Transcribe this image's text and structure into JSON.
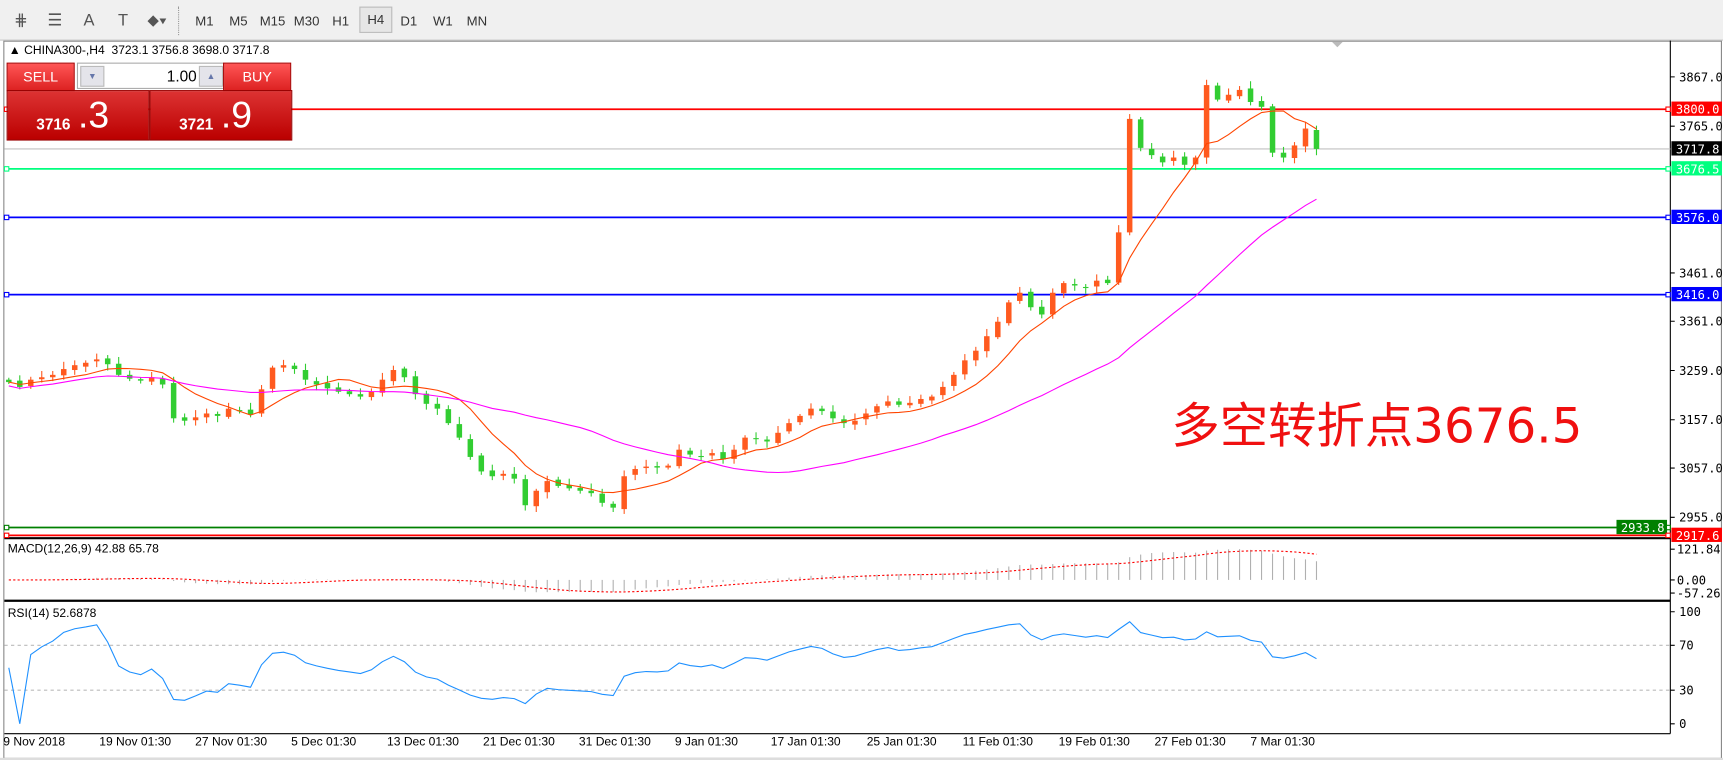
{
  "toolbar": {
    "tools": [
      {
        "name": "fibonacci-expansion-icon",
        "glyph": "⋕"
      },
      {
        "name": "fibonacci-fan-icon",
        "glyph": "☰"
      },
      {
        "name": "text-icon",
        "glyph": "A"
      },
      {
        "name": "text-label-icon",
        "glyph": "T"
      },
      {
        "name": "arrows-icon",
        "glyph": "⬥▾"
      }
    ],
    "timeframes": [
      "M1",
      "M5",
      "M15",
      "M30",
      "H1",
      "H4",
      "D1",
      "W1",
      "MN"
    ],
    "active_timeframe": "H4"
  },
  "header": {
    "symbol": "CHINA300-,H4",
    "ohlc": "3723.1 3756.8 3698.0 3717.8"
  },
  "trade": {
    "sell_label": "SELL",
    "buy_label": "BUY",
    "lot": "1.00",
    "sell_int": "3716",
    "sell_dec": ".3",
    "buy_int": "3721",
    "buy_dec": ".9"
  },
  "annotation": "多空转折点3676.5",
  "levels": [
    {
      "value": 3800.0,
      "label": "3800.0",
      "color": "#ff0000",
      "text": "#ffffff"
    },
    {
      "value": 3717.8,
      "label": "3717.8",
      "color": "#c0c0c0",
      "tag": "#000000",
      "text": "#ffffff"
    },
    {
      "value": 3676.5,
      "label": "3676.5",
      "color": "#00ff7f",
      "text": "#ffffff"
    },
    {
      "value": 3576.0,
      "label": "3576.0",
      "color": "#0000ff",
      "text": "#ffffff"
    },
    {
      "value": 3416.0,
      "label": "3416.0",
      "color": "#0000ff",
      "text": "#ffffff"
    },
    {
      "value": 2933.8,
      "label": "2933.8",
      "color": "#008000",
      "text": "#ffffff"
    },
    {
      "value": 2917.6,
      "label": "2917.6",
      "color": "#ff0000",
      "text": "#ffffff"
    }
  ],
  "price_ticks": [
    "3867.0",
    "3765.0",
    "3461.0",
    "3361.0",
    "3259.0",
    "3157.0",
    "3057.0",
    "2955.0"
  ],
  "macd": {
    "label": "MACD(12,26,9) 42.88 65.78",
    "ticks": [
      "121.84",
      "0.00",
      "-57.26"
    ]
  },
  "rsi": {
    "label": "RSI(14) 52.6878",
    "ticks": [
      "100",
      "70",
      "30",
      "0"
    ]
  },
  "time_labels": [
    "9 Nov 2018",
    "19 Nov 01:30",
    "27 Nov 01:30",
    "5 Dec 01:30",
    "13 Dec 01:30",
    "21 Dec 01:30",
    "31 Dec 01:30",
    "9 Jan 01:30",
    "17 Jan 01:30",
    "25 Jan 01:30",
    "11 Feb 01:30",
    "19 Feb 01:30",
    "27 Feb 01:30",
    "7 Mar 01:30"
  ],
  "colors": {
    "bull": "#ff5a1f",
    "bear": "#32cd32",
    "ma_fast": "#ff4500",
    "ma_slow": "#ff00ff",
    "macd_hist": "#b0b0b0",
    "macd_signal": "#ff0000",
    "rsi": "#1e90ff"
  },
  "chart_data": {
    "type": "candlestick",
    "symbol": "CHINA300-",
    "timeframe": "H4",
    "ylim": [
      2900,
      3900
    ],
    "closes": [
      3235,
      3225,
      3240,
      3245,
      3250,
      3262,
      3270,
      3275,
      3282,
      3272,
      3250,
      3242,
      3238,
      3245,
      3230,
      3160,
      3155,
      3162,
      3170,
      3165,
      3180,
      3175,
      3168,
      3220,
      3265,
      3270,
      3262,
      3240,
      3230,
      3222,
      3215,
      3210,
      3205,
      3215,
      3240,
      3260,
      3245,
      3210,
      3190,
      3180,
      3150,
      3120,
      3080,
      3050,
      3040,
      3045,
      3035,
      2980,
      3010,
      3030,
      3020,
      3015,
      3010,
      3005,
      2985,
      2975,
      3040,
      3055,
      3060,
      3058,
      3062,
      3095,
      3085,
      3080,
      3088,
      3075,
      3095,
      3120,
      3118,
      3112,
      3130,
      3150,
      3165,
      3180,
      3175,
      3160,
      3150,
      3155,
      3170,
      3185,
      3195,
      3188,
      3192,
      3200,
      3205,
      3225,
      3250,
      3280,
      3300,
      3330,
      3360,
      3400,
      3420,
      3390,
      3375,
      3420,
      3440,
      3435,
      3430,
      3445,
      3440,
      3545,
      3780,
      3720,
      3705,
      3690,
      3700,
      3685,
      3700,
      3850,
      3820,
      3830,
      3840,
      3815,
      3805,
      3710,
      3700,
      3725,
      3760,
      3717.8
    ],
    "last_ohlc": {
      "open": 3723.1,
      "high": 3756.8,
      "low": 3698.0,
      "close": 3717.8
    }
  }
}
